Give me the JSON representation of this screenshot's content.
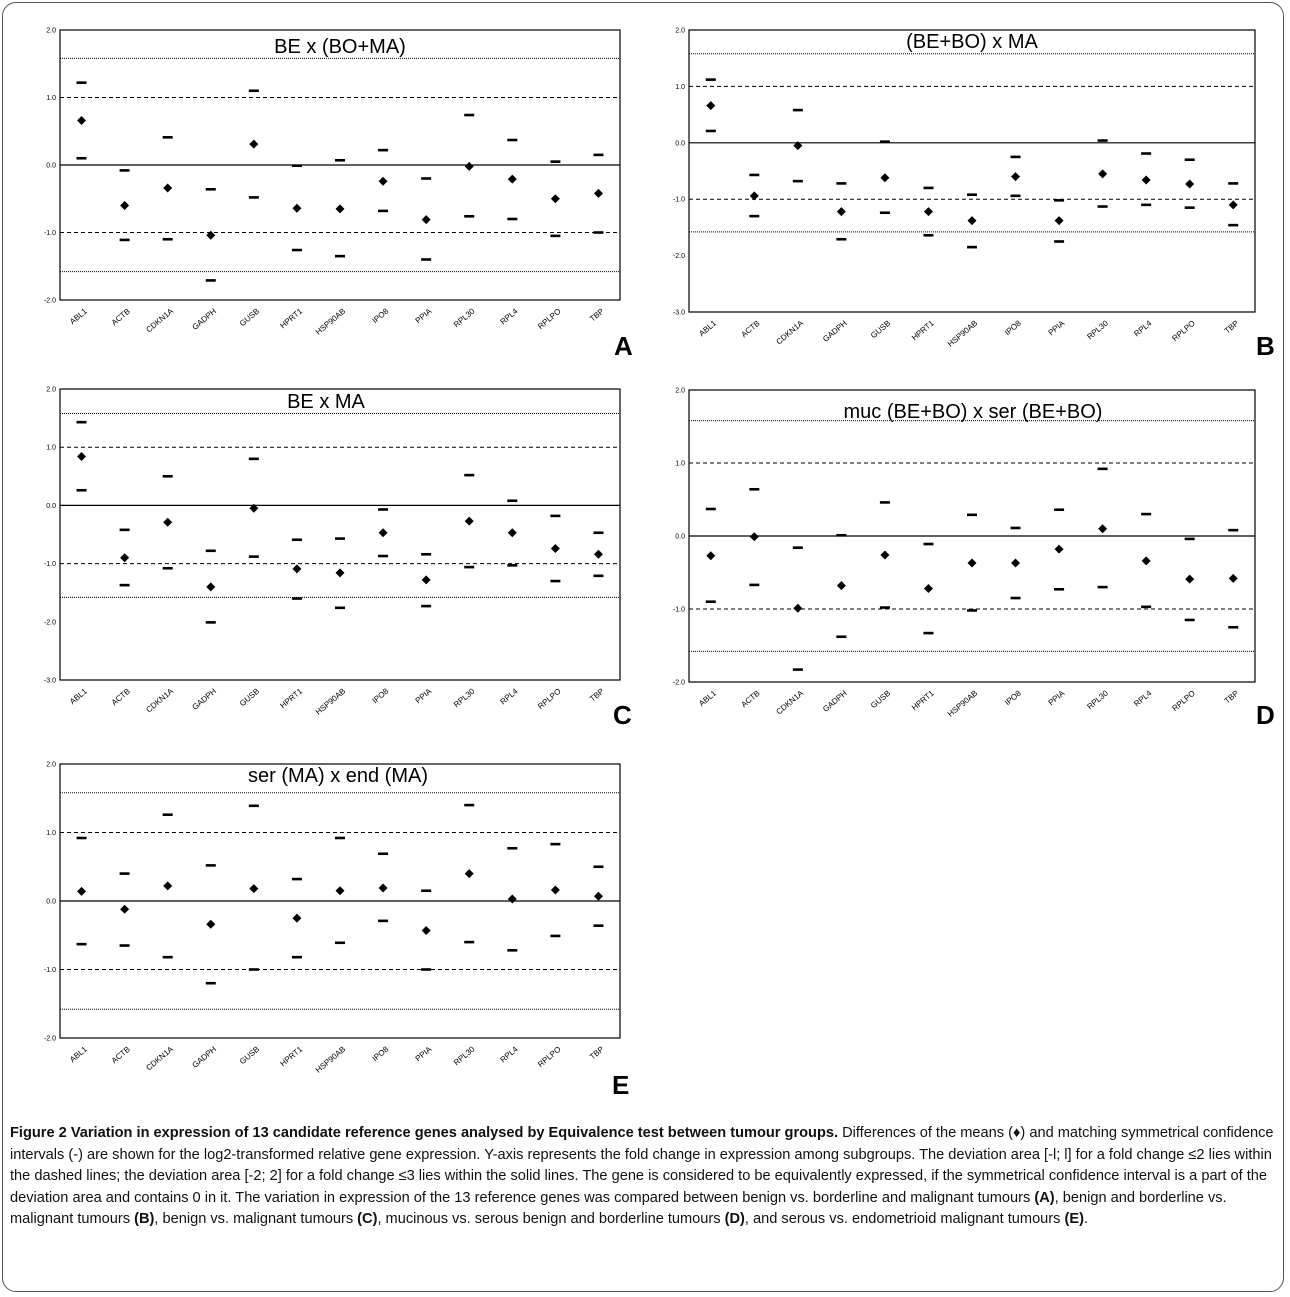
{
  "chart_data": [
    {
      "panel": "A",
      "type": "scatter",
      "title": "BE x (BO+MA)",
      "categories": [
        "ABL1",
        "ACTB",
        "CDKN1A",
        "GADPH",
        "GUSB",
        "HPRT1",
        "HSP90AB",
        "IPO8",
        "PPIA",
        "RPL30",
        "RPL4",
        "RPLPO",
        "TBP"
      ],
      "ylim": [
        -2.0,
        2.0
      ],
      "yticks": [
        "2.0",
        "1.0",
        "0.0",
        "-1.0",
        "-2.0"
      ],
      "ytick_values": [
        2,
        1,
        0,
        -1,
        -2
      ],
      "reference_lines": {
        "dotted": [
          1.58,
          -1.58
        ],
        "dashed": [
          1.0,
          -1.0
        ],
        "solid": [
          0
        ]
      },
      "series": [
        {
          "name": "mean difference",
          "values": [
            0.66,
            -0.6,
            -0.34,
            -1.04,
            0.31,
            -0.64,
            -0.65,
            -0.24,
            -0.81,
            -0.02,
            -0.21,
            -0.5,
            -0.42
          ]
        },
        {
          "name": "upper CI",
          "values": [
            1.22,
            -0.08,
            0.41,
            -0.36,
            1.1,
            -0.01,
            0.07,
            0.22,
            -0.2,
            0.74,
            0.37,
            0.05,
            0.15
          ]
        },
        {
          "name": "lower CI",
          "values": [
            0.1,
            -1.11,
            -1.1,
            -1.71,
            -0.48,
            -1.26,
            -1.35,
            -0.68,
            -1.4,
            -0.76,
            -0.8,
            -1.05,
            -1.0
          ]
        }
      ]
    },
    {
      "panel": "B",
      "type": "scatter",
      "title": "(BE+BO) x MA",
      "categories": [
        "ABL1",
        "ACTB",
        "CDKN1A",
        "GADPH",
        "GUSB",
        "HPRT1",
        "HSP90AB",
        "IPO8",
        "PPIA",
        "RPL30",
        "RPL4",
        "RPLPO",
        "TBP"
      ],
      "ylim": [
        -3.0,
        2.0
      ],
      "yticks": [
        "2.0",
        "1.0",
        "0.0",
        "-1.0",
        "-2.0",
        "-3.0"
      ],
      "ytick_values": [
        2,
        1,
        0,
        -1,
        -2,
        -3
      ],
      "reference_lines": {
        "dotted": [
          1.58,
          -1.58
        ],
        "dashed": [
          1.0,
          -1.0
        ],
        "solid": [
          0
        ]
      },
      "series": [
        {
          "name": "mean difference",
          "values": [
            0.66,
            -0.94,
            -0.05,
            -1.22,
            -0.62,
            -1.22,
            -1.38,
            -0.6,
            -1.38,
            -0.55,
            -0.66,
            -0.73,
            -1.1
          ]
        },
        {
          "name": "upper CI",
          "values": [
            1.12,
            -0.57,
            0.58,
            -0.72,
            0.02,
            -0.8,
            -0.92,
            -0.25,
            -1.02,
            0.04,
            -0.19,
            -0.3,
            -0.72
          ]
        },
        {
          "name": "lower CI",
          "values": [
            0.21,
            -1.3,
            -0.68,
            -1.71,
            -1.24,
            -1.64,
            -1.85,
            -0.94,
            -1.75,
            -1.13,
            -1.1,
            -1.15,
            -1.46
          ]
        }
      ]
    },
    {
      "panel": "C",
      "type": "scatter",
      "title": "BE x MA",
      "categories": [
        "ABL1",
        "ACTB",
        "CDKN1A",
        "GADPH",
        "GUSB",
        "HPRT1",
        "HSP90AB",
        "IPO8",
        "PPIA",
        "RPL30",
        "RPL4",
        "RPLPO",
        "TBP"
      ],
      "ylim": [
        -3.0,
        2.0
      ],
      "yticks": [
        "2.0",
        "1.0",
        "0.0",
        "-1.0",
        "-2.0",
        "-3.0"
      ],
      "ytick_values": [
        2,
        1,
        0,
        -1,
        -2,
        -3
      ],
      "reference_lines": {
        "dotted": [
          1.58,
          -1.58
        ],
        "dashed": [
          1.0,
          -1.0
        ],
        "solid": [
          0
        ]
      },
      "series": [
        {
          "name": "mean difference",
          "values": [
            0.84,
            -0.9,
            -0.29,
            -1.4,
            -0.05,
            -1.09,
            -1.16,
            -0.47,
            -1.28,
            -0.27,
            -0.47,
            -0.74,
            -0.84
          ]
        },
        {
          "name": "upper CI",
          "values": [
            1.43,
            -0.42,
            0.5,
            -0.78,
            0.8,
            -0.59,
            -0.57,
            -0.07,
            -0.84,
            0.52,
            0.08,
            -0.18,
            -0.47
          ]
        },
        {
          "name": "lower CI",
          "values": [
            0.26,
            -1.37,
            -1.08,
            -2.01,
            -0.88,
            -1.6,
            -1.76,
            -0.87,
            -1.73,
            -1.06,
            -1.03,
            -1.3,
            -1.21
          ]
        }
      ]
    },
    {
      "panel": "D",
      "type": "scatter",
      "title": "muc (BE+BO) x ser (BE+BO)",
      "categories": [
        "ABL1",
        "ACTB",
        "CDKN1A",
        "GADPH",
        "GUSB",
        "HPRT1",
        "HSP90AB",
        "IPO8",
        "PPIA",
        "RPL30",
        "RPL4",
        "RPLPO",
        "TBP"
      ],
      "ylim": [
        -2.0,
        2.0
      ],
      "yticks": [
        "2.0",
        "1.0",
        "0.0",
        "-1.0",
        "-2.0"
      ],
      "ytick_values": [
        2,
        1,
        0,
        -1,
        -2
      ],
      "reference_lines": {
        "dotted": [
          1.58,
          -1.58
        ],
        "dashed": [
          1.0,
          -1.0
        ],
        "solid": [
          0
        ]
      },
      "series": [
        {
          "name": "mean difference",
          "values": [
            -0.27,
            -0.01,
            -0.99,
            -0.68,
            -0.26,
            -0.72,
            -0.37,
            -0.37,
            -0.18,
            0.1,
            -0.34,
            -0.59,
            -0.58
          ]
        },
        {
          "name": "upper CI",
          "values": [
            0.37,
            0.64,
            -0.16,
            0.01,
            0.46,
            -0.11,
            0.29,
            0.11,
            0.36,
            0.92,
            0.3,
            -0.04,
            0.08
          ]
        },
        {
          "name": "lower CI",
          "values": [
            -0.9,
            -0.67,
            -1.83,
            -1.38,
            -0.98,
            -1.33,
            -1.02,
            -0.85,
            -0.73,
            -0.7,
            -0.97,
            -1.15,
            -1.25
          ]
        }
      ]
    },
    {
      "panel": "E",
      "type": "scatter",
      "title": "ser (MA) x end (MA)",
      "categories": [
        "ABL1",
        "ACTB",
        "CDKN1A",
        "GADPH",
        "GUSB",
        "HPRT1",
        "HSP90AB",
        "IPO8",
        "PPIA",
        "RPL30",
        "RPL4",
        "RPLPO",
        "TBP"
      ],
      "ylim": [
        -2.0,
        2.0
      ],
      "yticks": [
        "2.0",
        "1.0",
        "0.0",
        "-1.0",
        "-2.0"
      ],
      "ytick_values": [
        2,
        1,
        0,
        -1,
        -2
      ],
      "reference_lines": {
        "dotted": [
          1.58,
          -1.58
        ],
        "dashed": [
          1.0,
          -1.0
        ],
        "solid": [
          0
        ]
      },
      "series": [
        {
          "name": "mean difference",
          "values": [
            0.14,
            -0.12,
            0.22,
            -0.34,
            0.18,
            -0.25,
            0.15,
            0.19,
            -0.43,
            0.4,
            0.03,
            0.16,
            0.07
          ]
        },
        {
          "name": "upper CI",
          "values": [
            0.92,
            0.4,
            1.26,
            0.52,
            1.39,
            0.32,
            0.92,
            0.69,
            0.15,
            1.4,
            0.77,
            0.83,
            0.5
          ]
        },
        {
          "name": "lower CI",
          "values": [
            -0.63,
            -0.65,
            -0.82,
            -1.2,
            -1.0,
            -0.82,
            -0.61,
            -0.29,
            -1.0,
            -0.6,
            -0.72,
            -0.51,
            -0.36
          ]
        }
      ]
    }
  ],
  "caption": {
    "heading": "Figure 2 Variation in expression of 13 candidate reference genes analysed by Equivalence test between tumour groups.",
    "body": " Differences of the means (♦) and matching symmetrical confidence intervals (-) are shown for the log2-transformed relative gene expression. Y-axis represents the fold change in expression among subgroups. The deviation area [-l; l] for a fold change ≤2 lies within the dashed lines; the deviation area [-2; 2] for a fold change ≤3 lies within the solid lines. The gene is considered to be equivalently expressed, if the symmetrical confidence interval is a part of the deviation area and contains 0 in it. The variation in expression of the 13 reference genes was compared between benign vs. borderline and malignant tumours ",
    "ref_a": "(A)",
    "t1": ", benign and borderline vs. malignant tumours ",
    "ref_b": "(B)",
    "t2": ", benign vs. malignant tumours ",
    "ref_c": "(C)",
    "t3": ", mucinous vs. serous benign and borderline tumours ",
    "ref_d": "(D)",
    "t4": ", and serous vs. endometrioid malignant tumours ",
    "ref_e": "(E)",
    "t5": "."
  }
}
